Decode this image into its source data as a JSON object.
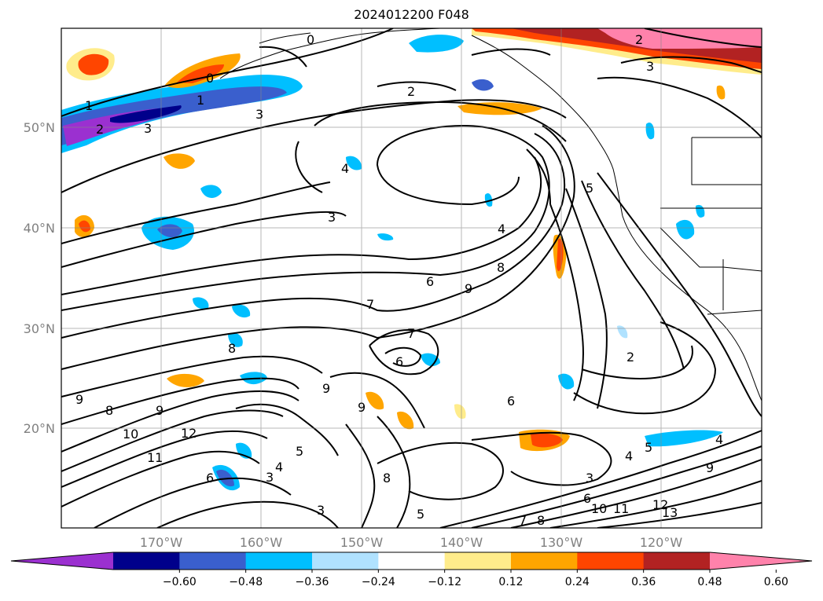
{
  "title": "2024012200 F048",
  "lat_labels": [
    "50°N",
    "40°N",
    "30°N",
    "20°N"
  ],
  "lon_labels": [
    "170°W",
    "160°W",
    "150°W",
    "140°W",
    "130°W",
    "120°W"
  ],
  "colorbar": {
    "ticks": [
      "−0.60",
      "−0.48",
      "−0.36",
      "−0.24",
      "−0.12",
      "0.12",
      "0.24",
      "0.36",
      "0.48",
      "0.60"
    ],
    "colors": [
      "#9b30d0",
      "#00008b",
      "#3a5fcd",
      "#00bfff",
      "#b0e2ff",
      "#ffffff",
      "#ffec8b",
      "#ffa500",
      "#ff4500",
      "#b22222",
      "#ff82ab"
    ]
  },
  "contour_labels": [
    "0",
    "1",
    "2",
    "3",
    "4",
    "5",
    "6",
    "7",
    "8",
    "9",
    "10",
    "11",
    "12",
    "13"
  ]
}
